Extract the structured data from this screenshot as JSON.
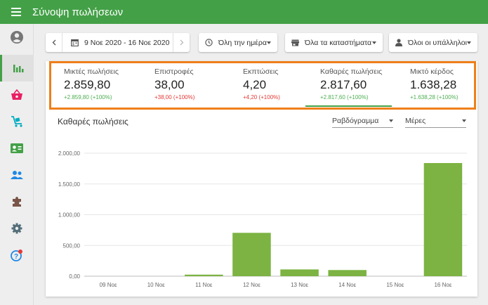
{
  "header": {
    "title": "Σύνοψη πωλήσεων"
  },
  "toolbar": {
    "date_range": "9 Νοε 2020 - 16 Νοε 2020",
    "time_filter": "Όλη την ημέρα",
    "store_filter": "Όλα τα καταστήματα",
    "employee_filter": "Όλοι οι υπάλληλοι"
  },
  "kpis": [
    {
      "label": "Μικτές πωλήσεις",
      "value": "2.859,80",
      "change": "+2.859,80 (+100%)",
      "change_color": "green"
    },
    {
      "label": "Επιστροφές",
      "value": "38,00",
      "change": "+38,00 (+100%)",
      "change_color": "red"
    },
    {
      "label": "Εκπτώσεις",
      "value": "4,20",
      "change": "+4,20 (+100%)",
      "change_color": "red"
    },
    {
      "label": "Καθαρές πωλήσεις",
      "value": "2.817,60",
      "change": "+2.817,60 (+100%)",
      "change_color": "green"
    },
    {
      "label": "Μικτό κέρδος",
      "value": "1.638,28",
      "change": "+1.638,28 (+100%)",
      "change_color": "green"
    }
  ],
  "chart_controls": {
    "chart_type": "Ραβδόγραμμα",
    "period": "Μέρες"
  },
  "colors": {
    "brand": "#43a047",
    "bar": "#7cb342",
    "highlight": "#ef7f1a"
  },
  "chart_data": {
    "type": "bar",
    "title": "Καθαρές πωλήσεις",
    "categories": [
      "09 Νοε",
      "10 Νοε",
      "11 Νοε",
      "12 Νοε",
      "13 Νοε",
      "14 Νοε",
      "15 Νοε",
      "16 Νοε"
    ],
    "values": [
      0,
      0,
      25,
      705,
      110,
      100,
      0,
      1840
    ],
    "yticks": [
      0,
      500,
      1000,
      1500,
      2000
    ],
    "ytick_labels": [
      "0,00",
      "500,00",
      "1.000,00",
      "1.500,00",
      "2.000,00"
    ],
    "ylim": [
      0,
      2000
    ],
    "xlabel": "",
    "ylabel": "",
    "grid": true
  }
}
